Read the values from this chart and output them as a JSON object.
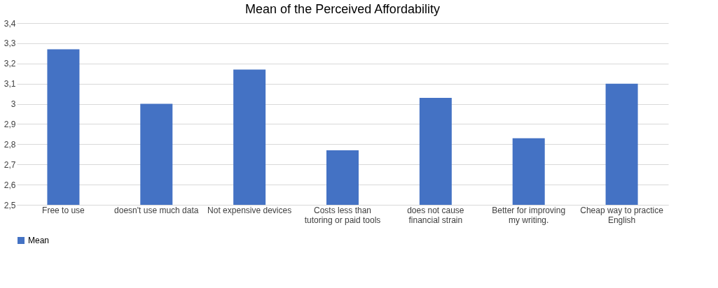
{
  "chart_data": {
    "type": "bar",
    "title": "Mean of the Perceived Affordability",
    "categories": [
      "Free to use",
      "doesn't use much data",
      "Not expensive devices",
      "Costs less than tutoring or paid tools",
      "does not cause financial strain",
      "Better for improving my writing.",
      "Cheap way to practice English"
    ],
    "series": [
      {
        "name": "Mean",
        "color": "#4472c4",
        "values": [
          3.27,
          3.0,
          3.17,
          2.77,
          3.03,
          2.83,
          3.1
        ]
      }
    ],
    "ylim": [
      2.5,
      3.4
    ],
    "yticks": [
      {
        "value": 2.5,
        "label": "2,5"
      },
      {
        "value": 2.6,
        "label": "2,6"
      },
      {
        "value": 2.7,
        "label": "2,7"
      },
      {
        "value": 2.8,
        "label": "2,8"
      },
      {
        "value": 2.9,
        "label": "2,9"
      },
      {
        "value": 3,
        "label": "3"
      },
      {
        "value": 3.1,
        "label": "3,1"
      },
      {
        "value": 3.2,
        "label": "3,2"
      },
      {
        "value": 3.3,
        "label": "3,3"
      },
      {
        "value": 3.4,
        "label": "3,4"
      }
    ],
    "grid": "y",
    "legend": "bottom"
  }
}
